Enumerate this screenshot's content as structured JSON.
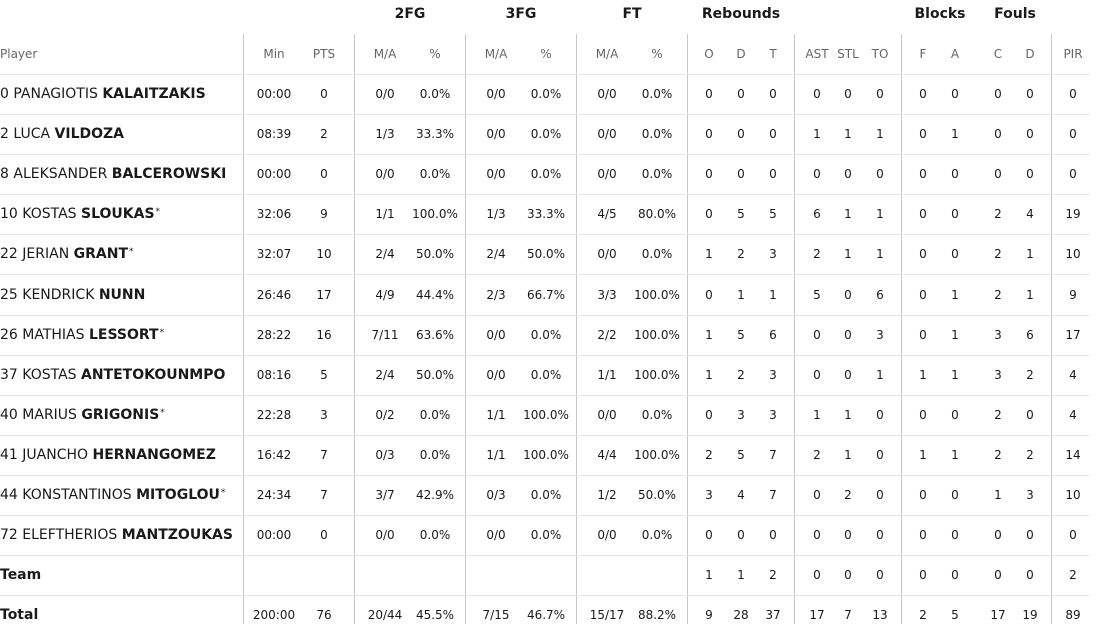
{
  "table": {
    "groups": [
      "2FG",
      "3FG",
      "FT",
      "Rebounds",
      "Blocks",
      "Fouls"
    ],
    "columns": [
      "Player",
      "Min",
      "PTS",
      "M/A",
      "%",
      "M/A",
      "%",
      "M/A",
      "%",
      "O",
      "D",
      "T",
      "AST",
      "STL",
      "TO",
      "F",
      "A",
      "C",
      "D",
      "PIR"
    ],
    "players": [
      {
        "number": "0",
        "first": "PANAGIOTIS",
        "last": "KALAITZAKIS",
        "cells": [
          "00:00",
          "0",
          "0/0",
          "0.0%",
          "0/0",
          "0.0%",
          "0/0",
          "0.0%",
          "0",
          "0",
          "0",
          "0",
          "0",
          "0",
          "0",
          "0",
          "0",
          "0",
          "0"
        ]
      },
      {
        "number": "2",
        "first": "LUCA",
        "last": "VILDOZA",
        "cells": [
          "08:39",
          "2",
          "1/3",
          "33.3%",
          "0/0",
          "0.0%",
          "0/0",
          "0.0%",
          "0",
          "0",
          "0",
          "1",
          "1",
          "1",
          "0",
          "1",
          "0",
          "0",
          "0"
        ]
      },
      {
        "number": "8",
        "first": "ALEKSANDER",
        "last": "BALCEROWSKI",
        "cells": [
          "00:00",
          "0",
          "0/0",
          "0.0%",
          "0/0",
          "0.0%",
          "0/0",
          "0.0%",
          "0",
          "0",
          "0",
          "0",
          "0",
          "0",
          "0",
          "0",
          "0",
          "0",
          "0"
        ]
      },
      {
        "number": "10",
        "first": "KOSTAS",
        "last": "SLOUKAS",
        "mark": "*",
        "cells": [
          "32:06",
          "9",
          "1/1",
          "100.0%",
          "1/3",
          "33.3%",
          "4/5",
          "80.0%",
          "0",
          "5",
          "5",
          "6",
          "1",
          "1",
          "0",
          "0",
          "2",
          "4",
          "19"
        ]
      },
      {
        "number": "22",
        "first": "JERIAN",
        "last": "GRANT",
        "mark": "*",
        "cells": [
          "32:07",
          "10",
          "2/4",
          "50.0%",
          "2/4",
          "50.0%",
          "0/0",
          "0.0%",
          "1",
          "2",
          "3",
          "2",
          "1",
          "1",
          "0",
          "0",
          "2",
          "1",
          "10"
        ]
      },
      {
        "number": "25",
        "first": "KENDRICK",
        "last": "NUNN",
        "cells": [
          "26:46",
          "17",
          "4/9",
          "44.4%",
          "2/3",
          "66.7%",
          "3/3",
          "100.0%",
          "0",
          "1",
          "1",
          "5",
          "0",
          "6",
          "0",
          "1",
          "2",
          "1",
          "9"
        ]
      },
      {
        "number": "26",
        "first": "MATHIAS",
        "last": "LESSORT",
        "mark": "*",
        "cells": [
          "28:22",
          "16",
          "7/11",
          "63.6%",
          "0/0",
          "0.0%",
          "2/2",
          "100.0%",
          "1",
          "5",
          "6",
          "0",
          "0",
          "3",
          "0",
          "1",
          "3",
          "6",
          "17"
        ]
      },
      {
        "number": "37",
        "first": "KOSTAS",
        "last": "ANTETOKOUNMPO",
        "cells": [
          "08:16",
          "5",
          "2/4",
          "50.0%",
          "0/0",
          "0.0%",
          "1/1",
          "100.0%",
          "1",
          "2",
          "3",
          "0",
          "0",
          "1",
          "1",
          "1",
          "3",
          "2",
          "4"
        ]
      },
      {
        "number": "40",
        "first": "MARIUS",
        "last": "GRIGONIS",
        "mark": "*",
        "cells": [
          "22:28",
          "3",
          "0/2",
          "0.0%",
          "1/1",
          "100.0%",
          "0/0",
          "0.0%",
          "0",
          "3",
          "3",
          "1",
          "1",
          "0",
          "0",
          "0",
          "2",
          "0",
          "4"
        ]
      },
      {
        "number": "41",
        "first": "JUANCHO",
        "last": "HERNANGOMEZ",
        "cells": [
          "16:42",
          "7",
          "0/3",
          "0.0%",
          "1/1",
          "100.0%",
          "4/4",
          "100.0%",
          "2",
          "5",
          "7",
          "2",
          "1",
          "0",
          "1",
          "1",
          "2",
          "2",
          "14"
        ]
      },
      {
        "number": "44",
        "first": "KONSTANTINOS",
        "last": "MITOGLOU",
        "mark": "*",
        "cells": [
          "24:34",
          "7",
          "3/7",
          "42.9%",
          "0/3",
          "0.0%",
          "1/2",
          "50.0%",
          "3",
          "4",
          "7",
          "0",
          "2",
          "0",
          "0",
          "0",
          "1",
          "3",
          "10"
        ]
      },
      {
        "number": "72",
        "first": "ELEFTHERIOS",
        "last": "MANTZOUKAS",
        "cells": [
          "00:00",
          "0",
          "0/0",
          "0.0%",
          "0/0",
          "0.0%",
          "0/0",
          "0.0%",
          "0",
          "0",
          "0",
          "0",
          "0",
          "0",
          "0",
          "0",
          "0",
          "0",
          "0"
        ]
      }
    ],
    "team": {
      "label": "Team",
      "cells": [
        null,
        null,
        null,
        null,
        null,
        null,
        null,
        null,
        "1",
        "1",
        "2",
        "0",
        "0",
        "0",
        "0",
        "0",
        "0",
        "0",
        "2"
      ]
    },
    "total": {
      "label": "Total",
      "cells": [
        "200:00",
        "76",
        "20/44",
        "45.5%",
        "7/15",
        "46.7%",
        "15/17",
        "88.2%",
        "9",
        "28",
        "37",
        "17",
        "7",
        "13",
        "2",
        "5",
        "17",
        "19",
        "89"
      ]
    }
  }
}
